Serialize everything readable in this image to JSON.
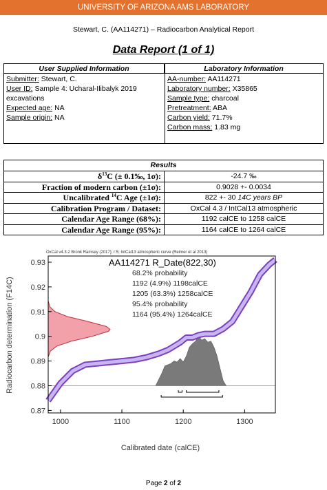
{
  "header": {
    "banner": "UNIVERSITY OF ARIZONA AMS LABORATORY",
    "subtitle": "Stewart, C. (AA114271) – Radiocarbon Analytical Report",
    "title": "Data Report (1 of 1)"
  },
  "user_info": {
    "heading": "User Supplied Information",
    "fields": [
      {
        "label": "Submitter:",
        "value": "Stewart, C."
      },
      {
        "label": "User ID:",
        "value": "Sample 4: Ucharal-Ilibalyk 2019 excavations"
      },
      {
        "label": "Expected age:",
        "value": "NA"
      },
      {
        "label": "Sample origin:",
        "value": "NA"
      }
    ]
  },
  "lab_info": {
    "heading": "Laboratory Information",
    "fields": [
      {
        "label": "AA-number:",
        "value": "AA114271"
      },
      {
        "label": "Laboratory number:",
        "value": "X35865"
      },
      {
        "label": "Sample type:",
        "value": "charcoal"
      },
      {
        "label": "Pretreatment:",
        "value": "ABA"
      },
      {
        "label": "Carbon yield:",
        "value": "71.7%"
      },
      {
        "label": "Carbon mass:",
        "value": "1.83 mg"
      }
    ]
  },
  "results": {
    "heading": "Results",
    "rows": [
      {
        "label_pre": "δ",
        "label_sup": "13",
        "label_post": "C (± 0.1‰, 1σ):",
        "value": "-24.7 ‰"
      },
      {
        "label_pre": "Fraction of modern carbon (±1σ):",
        "value": "0.9028 +- 0.0034"
      },
      {
        "label_pre": "Uncalibrated",
        "label_sup": "14",
        "label_post": "C Age (±1σ):",
        "value": "822 +- 30",
        "value_italic": "14C years BP"
      },
      {
        "label_pre": "Calibration Program / Dataset:",
        "value": "OxCal 4.3 / IntCal13 atmospheric"
      },
      {
        "label_pre": "Calendar Age Range (68%):",
        "value": "1192 calCE to 1258 calCE"
      },
      {
        "label_pre": "Calendar Age Range (95%):",
        "value": "1164 calCE to 1264 calCE"
      }
    ]
  },
  "figure": {
    "type": "line",
    "credit": "OxCal v4.3.2 Bronk Ramsey (2017); r:5; IntCal13 atmospheric curve (Reimer et al 2013)",
    "title": "AA114271 R_Date(822,30)",
    "annotations": [
      "68.2% probability",
      "1192 (4.9%) 1198calCE",
      "1205 (63.3%) 1258calCE",
      "95.4% probability",
      "1164 (95.4%) 1264calCE"
    ],
    "x_label": "Calibrated date (calCE)",
    "y_label": "Radiocarbon determination (F14C)",
    "xlim": [
      980,
      1350
    ],
    "ylim": [
      0.869,
      0.9325
    ],
    "xticks": [
      1000,
      1100,
      1200,
      1300
    ],
    "yticks": [
      0.87,
      0.88,
      0.89,
      0.9,
      0.91,
      0.92,
      0.93
    ],
    "curve": {
      "color": "#7b3fbf",
      "x": [
        980,
        1000,
        1020,
        1040,
        1060,
        1080,
        1100,
        1120,
        1140,
        1160,
        1175,
        1185,
        1195,
        1205,
        1215,
        1225,
        1235,
        1250,
        1265,
        1280,
        1295,
        1310,
        1325,
        1340,
        1350
      ],
      "y": [
        0.874,
        0.881,
        0.886,
        0.8885,
        0.889,
        0.8895,
        0.89,
        0.8905,
        0.8915,
        0.893,
        0.8945,
        0.896,
        0.8975,
        0.8995,
        0.8995,
        0.9005,
        0.901,
        0.901,
        0.903,
        0.906,
        0.912,
        0.918,
        0.925,
        0.929,
        0.931
      ]
    },
    "measurement": {
      "color": "#f2a0aa",
      "f14c": [
        0.892,
        0.894,
        0.896,
        0.898,
        0.9,
        0.902,
        0.9028,
        0.904,
        0.906,
        0.908,
        0.91,
        0.912,
        0.914
      ],
      "density": [
        0.006,
        0.035,
        0.135,
        0.37,
        0.71,
        0.97,
        1,
        0.94,
        0.64,
        0.31,
        0.11,
        0.025,
        0.004
      ]
    },
    "posterior": {
      "color": "#7a7a7a",
      "baseline": 0.88,
      "x": [
        980,
        1155,
        1165,
        1170,
        1180,
        1185,
        1190,
        1195,
        1200,
        1205,
        1210,
        1215,
        1220,
        1225,
        1230,
        1235,
        1240,
        1245,
        1250,
        1255,
        1260,
        1265,
        1270,
        1350
      ],
      "density": [
        0,
        0,
        0.25,
        0.4,
        0.45,
        0.5,
        0.48,
        0.55,
        0.48,
        0.6,
        0.78,
        0.85,
        0.9,
        1,
        0.92,
        0.95,
        0.88,
        0.9,
        0.78,
        0.6,
        0.35,
        0.1,
        0,
        0
      ]
    },
    "ranges_68": [
      [
        1192,
        1198
      ],
      [
        1205,
        1258
      ]
    ],
    "ranges_95": [
      [
        1164,
        1264
      ]
    ]
  },
  "footer": {
    "pre": "Page",
    "page": "2",
    "mid": "of",
    "total": "2"
  }
}
